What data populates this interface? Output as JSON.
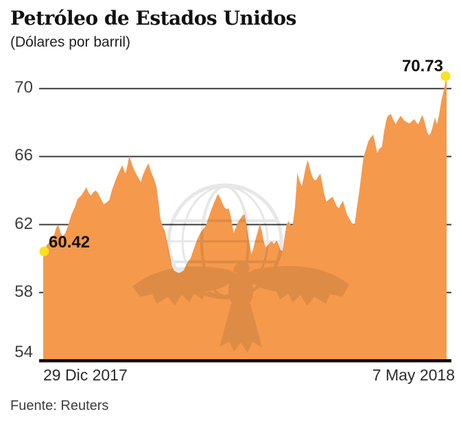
{
  "header": {
    "title": "Petróleo de Estados Unidos",
    "subtitle": "(Dólares por barril)"
  },
  "source": {
    "label": "Fuente: Reuters"
  },
  "chart_data": {
    "type": "area",
    "title": "Petróleo de Estados Unidos",
    "ylabel": "Dólares por barril",
    "grid": true,
    "legend": false,
    "watermark_icon": "eagle-globe-watermark",
    "x_axis": {
      "start_label": "29 Dic 2017",
      "end_label": "7 May 2018"
    },
    "y_axis": {
      "ticks": [
        54,
        58,
        62,
        66,
        70
      ],
      "ylim": [
        54,
        72
      ]
    },
    "endpoints": {
      "start": {
        "label": "60.42",
        "value": 60.42,
        "x_pct": 0
      },
      "end": {
        "label": "70.73",
        "value": 70.73,
        "x_pct": 100
      }
    },
    "colors": {
      "area": "#F5994C",
      "grid": "#3b3b3b",
      "baseline": "#0e0e0e",
      "dot": "#F8E31C",
      "watermark": "#E7E7E7",
      "text": "#121212"
    },
    "points": [
      [
        0,
        60.42
      ],
      [
        0.9,
        60.8
      ],
      [
        1.7,
        61.0
      ],
      [
        2.6,
        61.3
      ],
      [
        3.2,
        61.8
      ],
      [
        3.7,
        62.0
      ],
      [
        4.3,
        61.5
      ],
      [
        4.8,
        61.3
      ],
      [
        5.5,
        61.5
      ],
      [
        6.1,
        61.9
      ],
      [
        7.0,
        62.6
      ],
      [
        7.8,
        63.0
      ],
      [
        8.5,
        63.5
      ],
      [
        9.4,
        63.7
      ],
      [
        10.2,
        64.0
      ],
      [
        10.7,
        64.2
      ],
      [
        11.2,
        63.9
      ],
      [
        11.8,
        63.7
      ],
      [
        12.4,
        63.9
      ],
      [
        13.0,
        64.0
      ],
      [
        13.6,
        63.85
      ],
      [
        14.3,
        63.5
      ],
      [
        15.0,
        63.2
      ],
      [
        15.7,
        63.3
      ],
      [
        16.4,
        63.45
      ],
      [
        17.0,
        64.0
      ],
      [
        17.9,
        64.6
      ],
      [
        18.6,
        65.0
      ],
      [
        19.3,
        65.35
      ],
      [
        19.6,
        65.5
      ],
      [
        20.1,
        65.15
      ],
      [
        20.4,
        65.0
      ],
      [
        21.0,
        65.6
      ],
      [
        21.3,
        66.05
      ],
      [
        21.8,
        65.7
      ],
      [
        22.3,
        65.35
      ],
      [
        23.0,
        65.0
      ],
      [
        23.7,
        64.7
      ],
      [
        24.2,
        64.5
      ],
      [
        24.7,
        64.9
      ],
      [
        25.4,
        65.3
      ],
      [
        26.1,
        65.6
      ],
      [
        26.6,
        65.2
      ],
      [
        27.1,
        64.9
      ],
      [
        27.6,
        64.6
      ],
      [
        28.1,
        64.2
      ],
      [
        28.6,
        63.3
      ],
      [
        29.0,
        62.4
      ],
      [
        29.6,
        61.9
      ],
      [
        30.2,
        61.6
      ],
      [
        30.8,
        60.9
      ],
      [
        31.3,
        60.3
      ],
      [
        31.9,
        59.6
      ],
      [
        32.4,
        59.3
      ],
      [
        33.1,
        59.2
      ],
      [
        33.7,
        59.15
      ],
      [
        34.2,
        59.2
      ],
      [
        34.8,
        59.3
      ],
      [
        35.3,
        59.55
      ],
      [
        35.8,
        59.8
      ],
      [
        36.5,
        60.0
      ],
      [
        37.1,
        60.4
      ],
      [
        37.8,
        60.9
      ],
      [
        38.5,
        61.3
      ],
      [
        39.2,
        61.6
      ],
      [
        39.9,
        61.8
      ],
      [
        40.4,
        62.0
      ],
      [
        41.1,
        62.5
      ],
      [
        41.7,
        62.9
      ],
      [
        42.4,
        63.3
      ],
      [
        43.1,
        63.7
      ],
      [
        43.4,
        63.8
      ],
      [
        44.0,
        63.5
      ],
      [
        44.5,
        63.2
      ],
      [
        45.0,
        63.0
      ],
      [
        45.5,
        62.9
      ],
      [
        46.0,
        62.95
      ],
      [
        46.5,
        62.5
      ],
      [
        47.2,
        61.5
      ],
      [
        47.7,
        61.8
      ],
      [
        48.2,
        62.1
      ],
      [
        48.9,
        62.35
      ],
      [
        49.4,
        62.55
      ],
      [
        49.9,
        62.6
      ],
      [
        50.4,
        62.0
      ],
      [
        50.9,
        61.2
      ],
      [
        51.6,
        60.25
      ],
      [
        52.1,
        60.6
      ],
      [
        52.6,
        61.1
      ],
      [
        53.2,
        61.6
      ],
      [
        53.7,
        62.05
      ],
      [
        54.2,
        61.6
      ],
      [
        54.7,
        61.0
      ],
      [
        55.2,
        60.65
      ],
      [
        55.7,
        60.8
      ],
      [
        56.2,
        60.95
      ],
      [
        56.7,
        61.0
      ],
      [
        57.2,
        60.85
      ],
      [
        57.8,
        61.05
      ],
      [
        58.3,
        60.9
      ],
      [
        58.8,
        60.5
      ],
      [
        59.3,
        60.45
      ],
      [
        59.8,
        61.2
      ],
      [
        60.3,
        62.0
      ],
      [
        60.8,
        62.2
      ],
      [
        61.3,
        62.0
      ],
      [
        61.8,
        61.9
      ],
      [
        62.4,
        63.0
      ],
      [
        62.7,
        64.0
      ],
      [
        63.0,
        65.05
      ],
      [
        63.5,
        64.6
      ],
      [
        64.1,
        64.25
      ],
      [
        64.6,
        64.8
      ],
      [
        65.1,
        65.4
      ],
      [
        65.6,
        65.8
      ],
      [
        66.1,
        65.3
      ],
      [
        66.6,
        64.9
      ],
      [
        67.1,
        64.65
      ],
      [
        67.6,
        64.6
      ],
      [
        68.1,
        64.8
      ],
      [
        68.7,
        65.0
      ],
      [
        69.2,
        64.4
      ],
      [
        69.7,
        63.8
      ],
      [
        70.2,
        63.35
      ],
      [
        70.7,
        63.45
      ],
      [
        71.2,
        63.55
      ],
      [
        71.7,
        63.65
      ],
      [
        72.2,
        63.4
      ],
      [
        72.7,
        63.1
      ],
      [
        73.3,
        62.95
      ],
      [
        73.8,
        63.2
      ],
      [
        74.3,
        63.4
      ],
      [
        74.8,
        63.0
      ],
      [
        75.3,
        62.6
      ],
      [
        76.0,
        62.3
      ],
      [
        76.5,
        62.1
      ],
      [
        77.2,
        62.0
      ],
      [
        77.7,
        62.9
      ],
      [
        78.4,
        64.05
      ],
      [
        78.9,
        65.0
      ],
      [
        79.4,
        65.95
      ],
      [
        80.1,
        66.5
      ],
      [
        80.6,
        66.9
      ],
      [
        81.3,
        67.15
      ],
      [
        81.8,
        67.3
      ],
      [
        82.3,
        66.8
      ],
      [
        82.8,
        66.2
      ],
      [
        83.3,
        66.45
      ],
      [
        84.0,
        66.6
      ],
      [
        84.5,
        67.5
      ],
      [
        85.2,
        68.3
      ],
      [
        85.7,
        68.45
      ],
      [
        86.2,
        68.5
      ],
      [
        86.7,
        68.2
      ],
      [
        87.4,
        67.9
      ],
      [
        87.9,
        68.15
      ],
      [
        88.6,
        68.4
      ],
      [
        89.1,
        68.25
      ],
      [
        89.6,
        68.1
      ],
      [
        90.3,
        68.0
      ],
      [
        90.8,
        67.95
      ],
      [
        91.5,
        68.1
      ],
      [
        92.0,
        68.2
      ],
      [
        92.5,
        68.0
      ],
      [
        93.0,
        67.9
      ],
      [
        93.5,
        68.2
      ],
      [
        94.0,
        68.45
      ],
      [
        94.6,
        68.0
      ],
      [
        95.1,
        67.5
      ],
      [
        95.6,
        67.25
      ],
      [
        96.1,
        67.4
      ],
      [
        96.6,
        67.8
      ],
      [
        97.1,
        68.3
      ],
      [
        97.6,
        67.9
      ],
      [
        98.1,
        68.4
      ],
      [
        98.7,
        69.3
      ],
      [
        99.4,
        70.0
      ],
      [
        100,
        70.73
      ]
    ]
  }
}
